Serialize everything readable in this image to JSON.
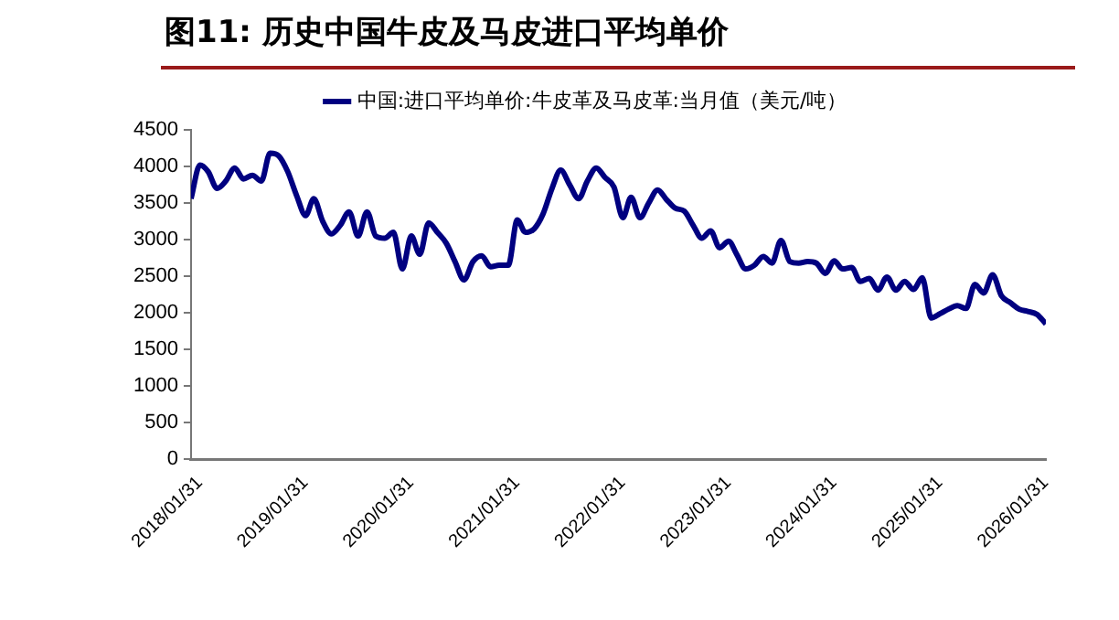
{
  "chart_data": {
    "type": "line",
    "title": "图11:  历史中国牛皮及马皮进口平均单价",
    "x": [
      "2018-01",
      "2018-02",
      "2018-03",
      "2018-04",
      "2018-05",
      "2018-06",
      "2018-07",
      "2018-08",
      "2018-09",
      "2018-10",
      "2018-11",
      "2018-12",
      "2019-01",
      "2019-02",
      "2019-03",
      "2019-04",
      "2019-05",
      "2019-06",
      "2019-07",
      "2019-08",
      "2019-09",
      "2019-10",
      "2019-11",
      "2019-12",
      "2020-01",
      "2020-02",
      "2020-03",
      "2020-04",
      "2020-05",
      "2020-06",
      "2020-07",
      "2020-08",
      "2020-09",
      "2020-10",
      "2020-11",
      "2020-12",
      "2021-01",
      "2021-02",
      "2021-03",
      "2021-04",
      "2021-05",
      "2021-06",
      "2021-07",
      "2021-08",
      "2021-09",
      "2021-10",
      "2021-11",
      "2021-12",
      "2022-01",
      "2022-02",
      "2022-03",
      "2022-04",
      "2022-05",
      "2022-06",
      "2022-07",
      "2022-08",
      "2022-09",
      "2022-10",
      "2022-11",
      "2022-12",
      "2023-01",
      "2023-02",
      "2023-03",
      "2023-04",
      "2023-05",
      "2023-06",
      "2023-07",
      "2023-08",
      "2023-09",
      "2023-10",
      "2023-11",
      "2023-12",
      "2024-01",
      "2024-02",
      "2024-03",
      "2024-04",
      "2024-05",
      "2024-06",
      "2024-07",
      "2024-08",
      "2024-09",
      "2024-10",
      "2024-11",
      "2024-12",
      "2025-01",
      "2025-02",
      "2025-03",
      "2025-04",
      "2025-05",
      "2025-06",
      "2025-07",
      "2025-08",
      "2025-09",
      "2025-10",
      "2025-11",
      "2025-12",
      "2026-01",
      "2026-02"
    ],
    "series": [
      {
        "name": "中国:进口平均单价:牛皮革及马皮革:当月值（美元/吨）",
        "color": "#000080",
        "values": [
          3560,
          4020,
          3930,
          3700,
          3800,
          3980,
          3830,
          3880,
          3800,
          4180,
          4140,
          3930,
          3600,
          3330,
          3560,
          3250,
          3080,
          3200,
          3380,
          3050,
          3380,
          3050,
          3020,
          3100,
          2600,
          3050,
          2800,
          3230,
          3100,
          2950,
          2700,
          2450,
          2700,
          2780,
          2630,
          2650,
          2650,
          3270,
          3100,
          3150,
          3350,
          3700,
          3950,
          3750,
          3560,
          3800,
          3980,
          3850,
          3720,
          3300,
          3580,
          3300,
          3500,
          3680,
          3550,
          3430,
          3390,
          3200,
          3020,
          3120,
          2890,
          2980,
          2800,
          2600,
          2650,
          2770,
          2680,
          2990,
          2700,
          2680,
          2700,
          2680,
          2540,
          2710,
          2600,
          2620,
          2430,
          2470,
          2310,
          2490,
          2310,
          2430,
          2320,
          2480,
          1930,
          1990,
          2050,
          2100,
          2060,
          2390,
          2270,
          2520,
          2230,
          2140,
          2050,
          2020,
          1980,
          1850
        ]
      }
    ],
    "xlim": [
      "2018-01",
      "2026-02"
    ],
    "xticks": [
      {
        "value": "2018-01-31",
        "label": "2018/01/31"
      },
      {
        "value": "2019-01-31",
        "label": "2019/01/31"
      },
      {
        "value": "2020-01-31",
        "label": "2020/01/31"
      },
      {
        "value": "2021-01-31",
        "label": "2021/01/31"
      },
      {
        "value": "2022-01-31",
        "label": "2022/01/31"
      },
      {
        "value": "2023-01-31",
        "label": "2023/01/31"
      },
      {
        "value": "2024-01-31",
        "label": "2024/01/31"
      },
      {
        "value": "2025-01-31",
        "label": "2025/01/31"
      },
      {
        "value": "2026-01-31",
        "label": "2026/01/31"
      }
    ],
    "ylim": [
      0,
      4500
    ],
    "yticks": [
      0,
      500,
      1000,
      1500,
      2000,
      2500,
      3000,
      3500,
      4000,
      4500
    ],
    "grid": false,
    "legend": "top",
    "marker": "none",
    "line_style": "solid"
  }
}
